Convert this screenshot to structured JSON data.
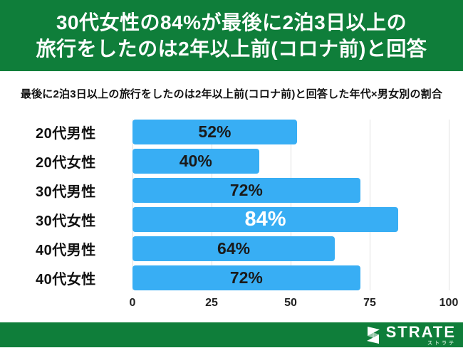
{
  "header": {
    "title_line1": "30代女性の84%が最後に2泊3日以上の",
    "title_line2": "旅行をしたのは2年以上前(コロナ前)と回答"
  },
  "subtitle": "最後に2泊3日以上の旅行をしたのは2年以上前(コロナ前)と回答した年代×男女別の割合",
  "chart_data": {
    "type": "bar",
    "orientation": "horizontal",
    "title": "最後に2泊3日以上の旅行をしたのは2年以上前(コロナ前)と回答した年代×男女別の割合",
    "categories": [
      "20代男性",
      "20代女性",
      "30代男性",
      "30代女性",
      "40代男性",
      "40代女性"
    ],
    "values": [
      52,
      40,
      72,
      84,
      64,
      72
    ],
    "data_labels": [
      "52%",
      "40%",
      "72%",
      "84%",
      "64%",
      "72%"
    ],
    "highlight_index": 3,
    "xlabel": "",
    "ylabel": "",
    "xlim": [
      0,
      100
    ],
    "xticks": [
      0,
      25,
      50,
      75,
      100
    ],
    "grid": true,
    "legend": false,
    "bar_color": "#38AEF4",
    "label_color": "#1a1a1a",
    "highlight_label_color": "#ffffff"
  },
  "footer": {
    "logo_text": "STRATE",
    "logo_subtext": "ストラテ",
    "logo_icon": "strate-s-ribbon-icon"
  },
  "colors": {
    "brand_green": "#0F7E3A",
    "bar_blue": "#38AEF4",
    "grid_gray": "#E0E0E0"
  }
}
